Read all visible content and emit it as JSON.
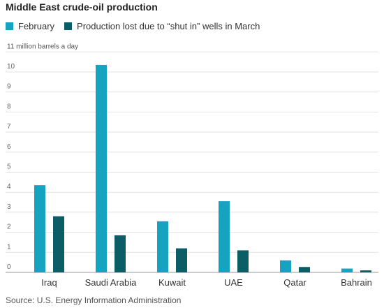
{
  "chart_data": {
    "type": "bar",
    "title": "Middle East crude-oil production",
    "ylabel": "11 million barrels a day",
    "categories": [
      "Iraq",
      "Saudi Arabia",
      "Kuwait",
      "UAE",
      "Qatar",
      "Bahrain"
    ],
    "series": [
      {
        "name": "February",
        "color": "#16a3bf",
        "values": [
          4.35,
          10.35,
          2.55,
          3.55,
          0.6,
          0.19
        ]
      },
      {
        "name": "Production lost due to “shut in” wells in March",
        "color": "#0c5e66",
        "values": [
          2.8,
          1.85,
          1.2,
          1.1,
          0.27,
          0.1
        ]
      }
    ],
    "yticks": [
      "0",
      "1",
      "2",
      "3",
      "4",
      "5",
      "6",
      "7",
      "8",
      "9",
      "10"
    ],
    "ylim": [
      0,
      11
    ],
    "grid": true,
    "legend_position": "top-left"
  },
  "source": "Source: U.S. Energy Information Administration"
}
